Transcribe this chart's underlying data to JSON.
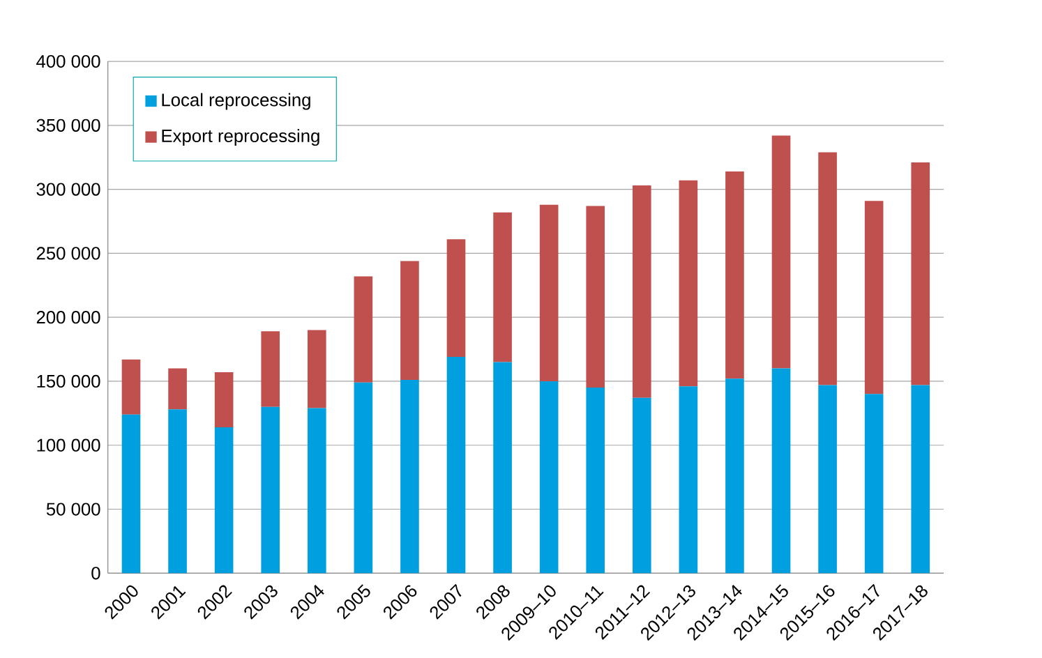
{
  "chart_data": {
    "type": "bar",
    "stacked": true,
    "categories": [
      "2000",
      "2001",
      "2002",
      "2003",
      "2004",
      "2005",
      "2006",
      "2007",
      "2008",
      "2009–10",
      "2010–11",
      "2011–12",
      "2012–13",
      "2013–14",
      "2014–15",
      "2015–16",
      "2016–17",
      "2017–18"
    ],
    "series": [
      {
        "name": "Local reprocessing",
        "color": "#009fdf",
        "values": [
          124000,
          128000,
          114000,
          130000,
          129000,
          149000,
          151000,
          169000,
          165000,
          150000,
          145000,
          137000,
          146000,
          152000,
          160000,
          147000,
          140000,
          147000
        ]
      },
      {
        "name": "Export reprocessing",
        "color": "#c0504d",
        "values": [
          43000,
          32000,
          43000,
          59000,
          61000,
          83000,
          93000,
          92000,
          117000,
          138000,
          142000,
          166000,
          161000,
          162000,
          182000,
          182000,
          151000,
          174000
        ]
      }
    ],
    "ylim": [
      0,
      400000
    ],
    "yticks": [
      {
        "value": 0,
        "label": "0"
      },
      {
        "value": 50000,
        "label": "50 000"
      },
      {
        "value": 100000,
        "label": "100 000"
      },
      {
        "value": 150000,
        "label": "150 000"
      },
      {
        "value": 200000,
        "label": "200 000"
      },
      {
        "value": 250000,
        "label": "250 000"
      },
      {
        "value": 300000,
        "label": "300 000"
      },
      {
        "value": 350000,
        "label": "350 000"
      },
      {
        "value": 400000,
        "label": "400 000"
      }
    ],
    "grid": "y",
    "legend": "top left"
  }
}
